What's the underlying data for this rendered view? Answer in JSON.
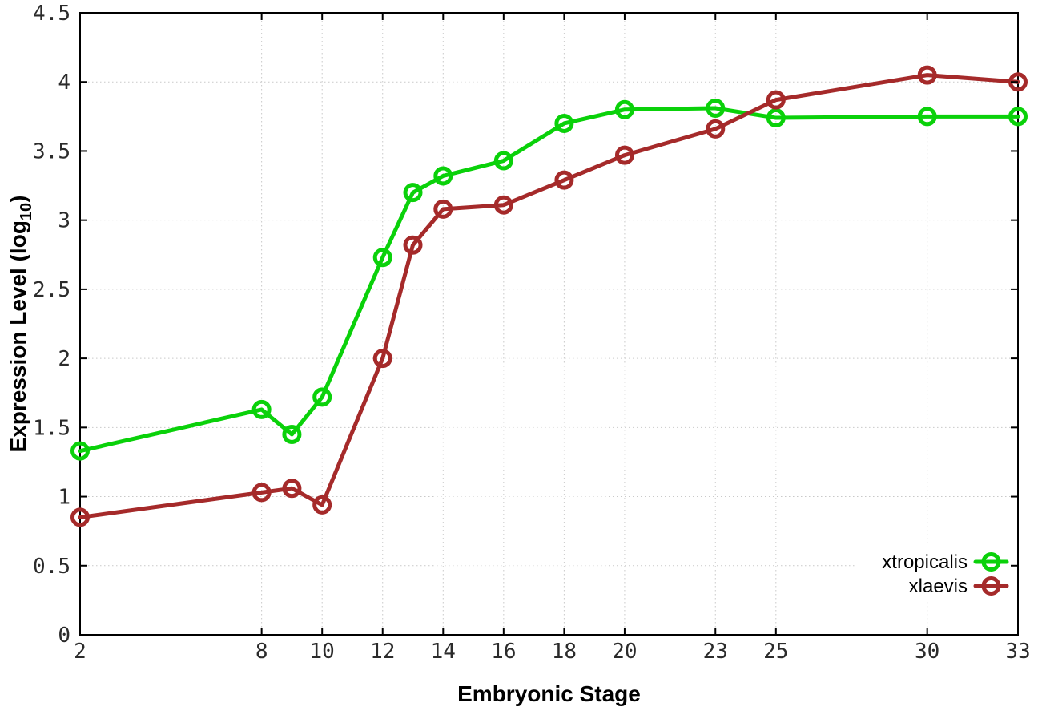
{
  "figure": {
    "background": "#ffffff",
    "border_color": "#000000",
    "grid_color": "#c9c9c9",
    "tick_color": "#000000",
    "tick_label_color": "#2b2b2b"
  },
  "chart_data": {
    "type": "line",
    "title": "",
    "xlabel": "Embryonic Stage",
    "ylabel": {
      "pre": "Expression Level (log",
      "sub": "10",
      "post": ")"
    },
    "xlim": [
      2,
      33
    ],
    "ylim": [
      0,
      4.5
    ],
    "grid": true,
    "legend_position": "inside-bottom-right",
    "x": [
      2,
      8,
      9,
      10,
      12,
      13,
      14,
      16,
      18,
      20,
      23,
      25,
      30,
      33
    ],
    "series": [
      {
        "name": "xtropicalis",
        "color": "#0ad10a",
        "values": [
          1.33,
          1.63,
          1.45,
          1.72,
          2.73,
          3.2,
          3.32,
          3.43,
          3.7,
          3.8,
          3.81,
          3.74,
          3.75,
          3.75
        ]
      },
      {
        "name": "xlaevis",
        "color": "#a52a2a",
        "values": [
          0.85,
          1.03,
          1.06,
          0.94,
          2.0,
          2.82,
          3.08,
          3.11,
          3.29,
          3.47,
          3.66,
          3.87,
          4.05,
          4.0
        ]
      }
    ],
    "x_ticks": {
      "values": [
        2,
        8,
        10,
        12,
        14,
        16,
        18,
        20,
        23,
        25,
        30,
        33
      ],
      "labels": [
        "2",
        "8",
        "10",
        "12",
        "14",
        "16",
        "18",
        "20",
        "23",
        "25",
        "30",
        "33"
      ]
    },
    "y_ticks": {
      "values": [
        0,
        0.5,
        1,
        1.5,
        2,
        2.5,
        3,
        3.5,
        4,
        4.5
      ],
      "labels": [
        "0",
        "0.5",
        "1",
        "1.5",
        "2",
        "2.5",
        "3",
        "3.5",
        "4",
        "4.5"
      ]
    }
  }
}
